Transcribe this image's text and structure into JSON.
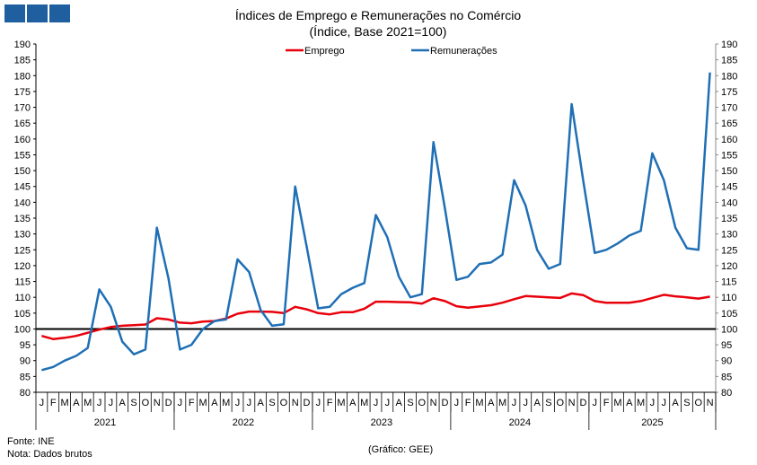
{
  "chart_data": {
    "type": "line",
    "title": "Índices de Emprego e Remunerações no Comércio",
    "subtitle": "(Índice, Base 2021=100)",
    "ylim": [
      80,
      190
    ],
    "ystep": 5,
    "reference_line": 100,
    "years": [
      "2021",
      "2022",
      "2023",
      "2024",
      "2025"
    ],
    "month_labels": [
      "J",
      "F",
      "M",
      "A",
      "M",
      "J",
      "J",
      "A",
      "S",
      "O",
      "N",
      "D"
    ],
    "months_last_year": 11,
    "legend_position": "top-center",
    "series": [
      {
        "name": "Emprego",
        "color": "#e8000b",
        "values": [
          97.8,
          96.8,
          97.2,
          97.8,
          98.8,
          99.8,
          100.6,
          101,
          101.2,
          101.4,
          103.4,
          103,
          102,
          101.8,
          102.3,
          102.5,
          103.3,
          104.8,
          105.5,
          105.5,
          105.4,
          105,
          107,
          106.2,
          105,
          104.6,
          105.3,
          105.3,
          106.4,
          108.6,
          108.6,
          108.5,
          108.4,
          108,
          109.7,
          108.8,
          107.2,
          106.7,
          107.1,
          107.5,
          108.3,
          109.4,
          110.4,
          110.2,
          110,
          109.8,
          111.2,
          110.7,
          108.8,
          108.3,
          108.3,
          108.3,
          108.8,
          109.8,
          110.8,
          110.3,
          110,
          109.6,
          110.2
        ]
      },
      {
        "name": "Remunerações",
        "color": "#1f6fb5",
        "values": [
          87,
          88,
          90,
          91.5,
          94,
          112.5,
          107,
          96,
          92,
          93.5,
          132,
          116,
          93.5,
          95,
          100,
          102.5,
          103,
          122,
          118,
          106,
          101,
          101.5,
          145,
          126,
          106.5,
          107,
          111,
          113,
          114.5,
          136,
          129,
          116.5,
          110,
          111,
          159,
          138,
          115.5,
          116.5,
          120.5,
          121,
          123.5,
          147,
          139,
          125,
          119,
          120.5,
          171,
          147,
          124,
          125,
          127,
          129.5,
          131,
          155.5,
          147,
          132,
          125.5,
          125,
          181
        ]
      }
    ]
  },
  "footer": {
    "source": "Fonte: INE",
    "note": "Nota: Dados brutos",
    "credit": "(Gráfico: GEE)"
  }
}
